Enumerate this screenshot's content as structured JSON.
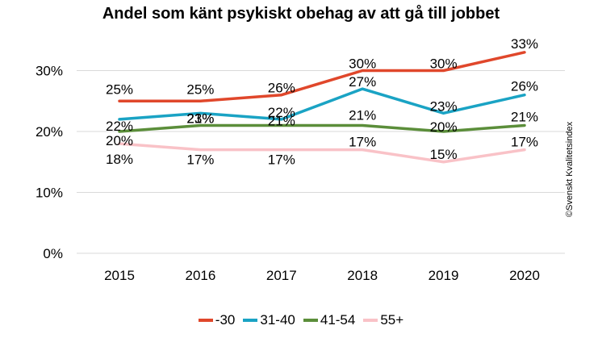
{
  "chart_data": {
    "type": "line",
    "title": "Andel som känt psykiskt obehag av att gå till jobbet",
    "categories": [
      "2015",
      "2016",
      "2017",
      "2018",
      "2019",
      "2020"
    ],
    "ylim": [
      0,
      30
    ],
    "y_ticks": [
      "0%",
      "10%",
      "20%",
      "30%"
    ],
    "grid": true,
    "legend_position": "bottom",
    "series": [
      {
        "name": "-30",
        "color": "#E0472B",
        "values": [
          25,
          25,
          26,
          30,
          30,
          33
        ],
        "labels": [
          "25%",
          "25%",
          "26%",
          "30%",
          "30%",
          "33%"
        ]
      },
      {
        "name": "31-40",
        "color": "#1AA3C4",
        "values": [
          22,
          23,
          22,
          27,
          23,
          26
        ],
        "labels": [
          "22%",
          "23%",
          "22%",
          "27%",
          "23%",
          "26%"
        ]
      },
      {
        "name": "41-54",
        "color": "#5B8E3A",
        "values": [
          20,
          21,
          21,
          21,
          20,
          21
        ],
        "labels": [
          "20%",
          "21%",
          "21%",
          "21%",
          "20%",
          "21%"
        ]
      },
      {
        "name": "55+",
        "color": "#F9C2C7",
        "values": [
          18,
          17,
          17,
          17,
          15,
          17
        ],
        "labels": [
          "18%",
          "17%",
          "17%",
          "17%",
          "15%",
          "17%"
        ]
      }
    ]
  },
  "copyright": "©Svenskt Kvalitetsindex"
}
